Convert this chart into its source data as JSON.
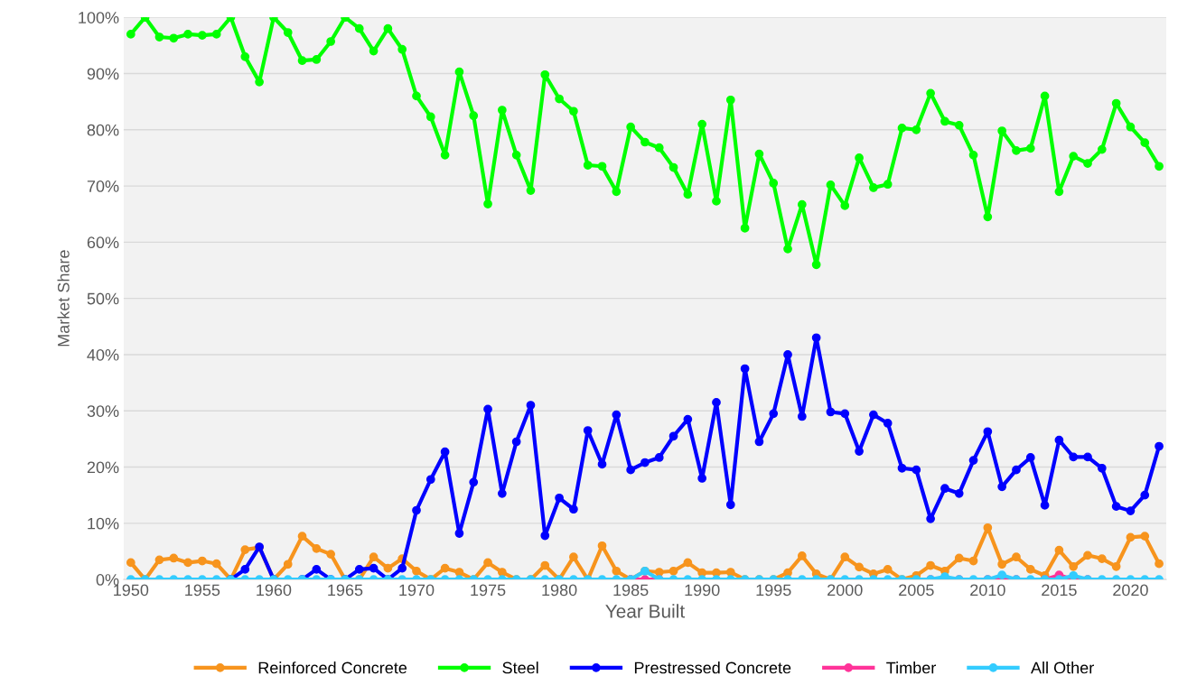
{
  "chart_data": {
    "type": "line",
    "xlabel": "Year Built",
    "ylabel": "Market Share",
    "x": [
      1950,
      1951,
      1952,
      1953,
      1954,
      1955,
      1956,
      1957,
      1958,
      1959,
      1960,
      1961,
      1962,
      1963,
      1964,
      1965,
      1966,
      1967,
      1968,
      1969,
      1970,
      1971,
      1972,
      1973,
      1974,
      1975,
      1976,
      1977,
      1978,
      1979,
      1980,
      1981,
      1982,
      1983,
      1984,
      1985,
      1986,
      1987,
      1988,
      1989,
      1990,
      1991,
      1992,
      1993,
      1994,
      1995,
      1996,
      1997,
      1998,
      1999,
      2000,
      2001,
      2002,
      2003,
      2004,
      2005,
      2006,
      2007,
      2008,
      2009,
      2010,
      2011,
      2012,
      2013,
      2014,
      2015,
      2016,
      2017,
      2018,
      2019,
      2020,
      2021,
      2022
    ],
    "series": [
      {
        "name": "Reinforced Concrete",
        "color": "#f7941d",
        "values": [
          3,
          0,
          3.5,
          3.8,
          3,
          3.3,
          2.8,
          0,
          5.3,
          5.7,
          0,
          2.7,
          7.7,
          5.5,
          4.5,
          0,
          0,
          4,
          2,
          3.7,
          1.5,
          0,
          2,
          1.3,
          0,
          3,
          1.3,
          0,
          0,
          2.5,
          0,
          4,
          0,
          6,
          1.5,
          0,
          1.5,
          1.3,
          1.5,
          3,
          1.2,
          1.2,
          1.3,
          0,
          0,
          0,
          1.2,
          4.2,
          1,
          0,
          4,
          2.2,
          1,
          1.8,
          0,
          0.7,
          2.5,
          1.5,
          3.8,
          3.3,
          9.2,
          2.7,
          4,
          1.8,
          0.7,
          5.2,
          2.3,
          4.3,
          3.7,
          2.3,
          7.5,
          7.7,
          2.8
        ]
      },
      {
        "name": "Steel",
        "color": "#00ff00",
        "values": [
          97,
          100,
          96.5,
          96.3,
          97,
          96.8,
          97,
          100,
          93,
          88.5,
          100,
          97.3,
          92.3,
          92.5,
          95.7,
          100,
          98,
          94,
          98,
          94.3,
          86,
          82.3,
          75.5,
          90.3,
          82.5,
          66.8,
          83.5,
          75.5,
          69.2,
          89.8,
          85.5,
          83.3,
          73.7,
          73.5,
          69,
          80.5,
          77.8,
          76.8,
          73.3,
          68.5,
          81,
          67.3,
          85.3,
          62.5,
          75.7,
          70.5,
          58.8,
          66.7,
          56,
          70.2,
          66.5,
          75,
          69.7,
          70.3,
          80.3,
          80,
          86.5,
          81.5,
          80.8,
          75.5,
          64.5,
          79.8,
          76.3,
          76.7,
          86,
          69,
          75.3,
          74,
          76.5,
          84.7,
          80.5,
          77.7,
          73.5
        ]
      },
      {
        "name": "Prestressed Concrete",
        "color": "#0000ff",
        "values": [
          null,
          null,
          null,
          null,
          null,
          null,
          null,
          0,
          1.8,
          5.8,
          0,
          null,
          0,
          1.8,
          0,
          0,
          1.8,
          2,
          0,
          2,
          12.3,
          17.8,
          22.7,
          8.2,
          17.3,
          30.3,
          15.3,
          24.5,
          31,
          7.8,
          14.5,
          12.5,
          26.5,
          20.5,
          29.3,
          19.5,
          20.8,
          21.7,
          25.5,
          28.5,
          18,
          31.5,
          13.3,
          37.5,
          24.5,
          29.5,
          40,
          29,
          43,
          29.8,
          29.5,
          22.8,
          29.3,
          27.8,
          19.8,
          19.5,
          10.8,
          16.2,
          15.3,
          21.2,
          26.3,
          16.5,
          19.5,
          21.7,
          13.2,
          24.8,
          21.8,
          21.8,
          19.8,
          13,
          12.2,
          15,
          23.7
        ]
      },
      {
        "name": "Timber",
        "color": "#ff3399",
        "values": [
          null,
          null,
          null,
          null,
          null,
          null,
          null,
          null,
          null,
          null,
          null,
          null,
          null,
          null,
          null,
          null,
          null,
          null,
          null,
          null,
          null,
          null,
          null,
          null,
          null,
          null,
          null,
          null,
          null,
          null,
          null,
          null,
          null,
          null,
          null,
          0,
          0,
          0,
          null,
          null,
          null,
          null,
          null,
          null,
          null,
          null,
          null,
          null,
          null,
          null,
          null,
          null,
          null,
          null,
          null,
          null,
          0,
          0,
          0,
          null,
          0,
          0,
          0,
          null,
          0,
          0.8,
          0,
          0,
          null,
          null,
          null,
          null,
          null
        ]
      },
      {
        "name": "All Other",
        "color": "#33ccff",
        "values": [
          0,
          0,
          0,
          0,
          0,
          0,
          0,
          0,
          0,
          0,
          0,
          0,
          0,
          0,
          0,
          0,
          0,
          0,
          0,
          0,
          0,
          0,
          0,
          0,
          0,
          0,
          0,
          0,
          0,
          0,
          0,
          0,
          0,
          0,
          0,
          0,
          1.5,
          0,
          0,
          0,
          0,
          0,
          0,
          0,
          0,
          0,
          0,
          0,
          0,
          0,
          0,
          0,
          0,
          0,
          0,
          0,
          0,
          0.5,
          0,
          0,
          0,
          0.8,
          0,
          0,
          0,
          0,
          0.7,
          0,
          0,
          0,
          0,
          0,
          0
        ]
      }
    ],
    "xlim": [
      1949.5,
      2022.5
    ],
    "xticks": [
      1950,
      1955,
      1960,
      1965,
      1970,
      1975,
      1980,
      1985,
      1990,
      1995,
      2000,
      2005,
      2010,
      2015,
      2020
    ],
    "ylim": [
      0,
      100
    ],
    "yticks": [
      {
        "value": 0,
        "label": "0%"
      },
      {
        "value": 10,
        "label": "10%"
      },
      {
        "value": 20,
        "label": "20%"
      },
      {
        "value": 30,
        "label": "30%"
      },
      {
        "value": 40,
        "label": "40%"
      },
      {
        "value": 50,
        "label": "50%"
      },
      {
        "value": 60,
        "label": "60%"
      },
      {
        "value": 70,
        "label": "70%"
      },
      {
        "value": 80,
        "label": "80%"
      },
      {
        "value": 90,
        "label": "90%"
      },
      {
        "value": 100,
        "label": "100%"
      }
    ],
    "grid": "y",
    "legend": "bottom",
    "marker": "circle",
    "line_style": "solid"
  }
}
